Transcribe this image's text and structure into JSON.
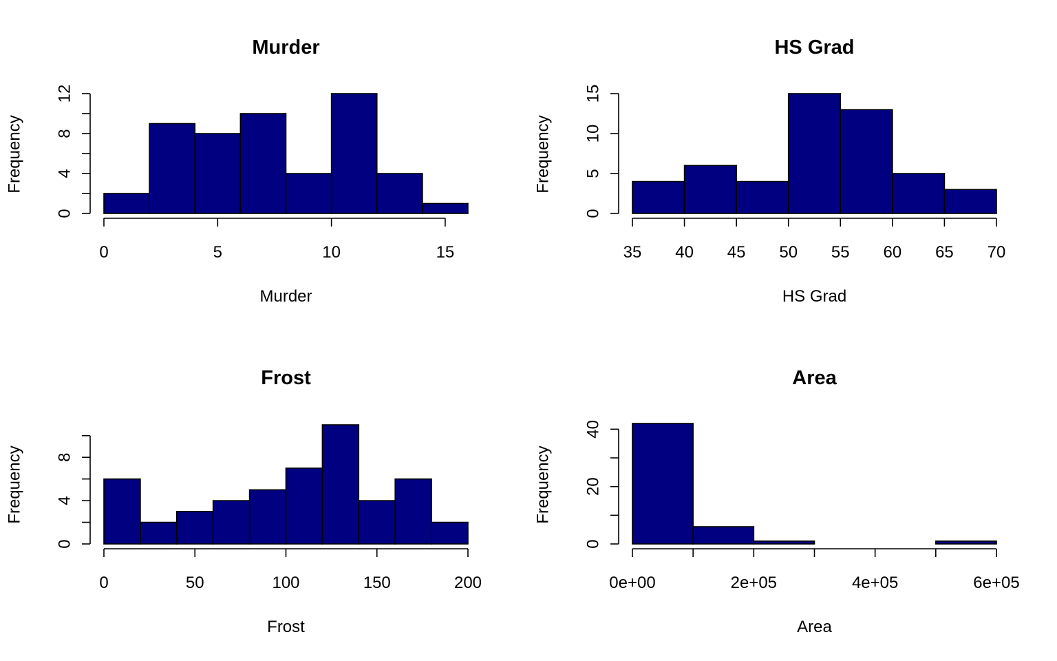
{
  "chart_data": [
    {
      "type": "bar",
      "title": "Murder",
      "xlabel": "Murder",
      "ylabel": "Frequency",
      "bar_color": "#000080",
      "bins": [
        [
          0,
          2
        ],
        [
          2,
          4
        ],
        [
          4,
          6
        ],
        [
          6,
          8
        ],
        [
          8,
          10
        ],
        [
          10,
          12
        ],
        [
          12,
          14
        ],
        [
          14,
          16
        ]
      ],
      "values": [
        2,
        9,
        8,
        10,
        4,
        12,
        4,
        1
      ],
      "xlim": [
        0,
        16
      ],
      "ylim": [
        0,
        12
      ],
      "xticks": [
        0,
        5,
        10,
        15
      ],
      "xtick_labels": [
        "0",
        "5",
        "10",
        "15"
      ],
      "yticks": [
        0,
        2,
        4,
        6,
        8,
        10,
        12
      ],
      "ytick_labels": [
        "0",
        "",
        "4",
        "",
        "8",
        "",
        "12"
      ]
    },
    {
      "type": "bar",
      "title": "HS Grad",
      "xlabel": "HS Grad",
      "ylabel": "Frequency",
      "bar_color": "#000080",
      "bins": [
        [
          35,
          40
        ],
        [
          40,
          45
        ],
        [
          45,
          50
        ],
        [
          50,
          55
        ],
        [
          55,
          60
        ],
        [
          60,
          65
        ],
        [
          65,
          70
        ]
      ],
      "values": [
        4,
        6,
        4,
        15,
        13,
        5,
        3
      ],
      "xlim": [
        35,
        70
      ],
      "ylim": [
        0,
        15
      ],
      "xticks": [
        35,
        40,
        45,
        50,
        55,
        60,
        65,
        70
      ],
      "xtick_labels": [
        "35",
        "40",
        "45",
        "50",
        "55",
        "60",
        "65",
        "70"
      ],
      "yticks": [
        0,
        5,
        10,
        15
      ],
      "ytick_labels": [
        "0",
        "5",
        "10",
        "15"
      ]
    },
    {
      "type": "bar",
      "title": "Frost",
      "xlabel": "Frost",
      "ylabel": "Frequency",
      "bar_color": "#000080",
      "bins": [
        [
          0,
          20
        ],
        [
          20,
          40
        ],
        [
          40,
          60
        ],
        [
          60,
          80
        ],
        [
          80,
          100
        ],
        [
          100,
          120
        ],
        [
          120,
          140
        ],
        [
          140,
          160
        ],
        [
          160,
          180
        ],
        [
          180,
          200
        ]
      ],
      "values": [
        6,
        2,
        3,
        4,
        5,
        7,
        11,
        4,
        6,
        2
      ],
      "xlim": [
        0,
        200
      ],
      "ylim": [
        0,
        11
      ],
      "xticks": [
        0,
        50,
        100,
        150,
        200
      ],
      "xtick_labels": [
        "0",
        "50",
        "100",
        "150",
        "200"
      ],
      "yticks": [
        0,
        2,
        4,
        6,
        8,
        10
      ],
      "ytick_labels": [
        "0",
        "",
        "4",
        "",
        "8",
        ""
      ]
    },
    {
      "type": "bar",
      "title": "Area",
      "xlabel": "Area",
      "ylabel": "Frequency",
      "bar_color": "#000080",
      "bins": [
        [
          0,
          100000
        ],
        [
          100000,
          200000
        ],
        [
          200000,
          300000
        ],
        [
          300000,
          400000
        ],
        [
          400000,
          500000
        ],
        [
          500000,
          600000
        ]
      ],
      "values": [
        42,
        6,
        1,
        0,
        0,
        1
      ],
      "xlim": [
        0,
        600000
      ],
      "ylim": [
        0,
        42
      ],
      "xticks": [
        0,
        100000,
        200000,
        300000,
        400000,
        500000,
        600000
      ],
      "xtick_labels": [
        "0e+00",
        "",
        "2e+05",
        "",
        "4e+05",
        "",
        "6e+05"
      ],
      "yticks": [
        0,
        10,
        20,
        30,
        40
      ],
      "ytick_labels": [
        "0",
        "",
        "20",
        "",
        "40"
      ]
    }
  ]
}
